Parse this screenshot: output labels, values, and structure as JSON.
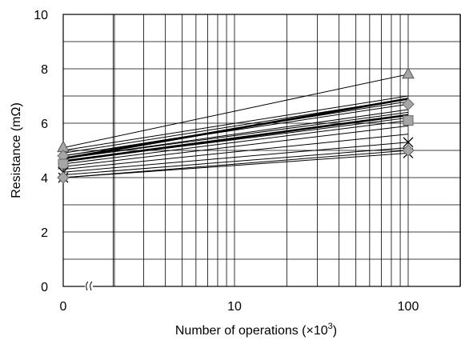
{
  "chart_data": {
    "type": "line",
    "xlabel": "Number of operations (×10",
    "xlabel_sup": "3",
    "xlabel_close": ")",
    "ylabel": "Resistance  (mΩ)",
    "x_scale": "log with axis break at 0",
    "x_ticks": [
      {
        "value": 0,
        "label": "0"
      },
      {
        "value": 10,
        "label": "10"
      },
      {
        "value": 100,
        "label": "100"
      }
    ],
    "x_minor": [
      2,
      3,
      4,
      5,
      6,
      7,
      8,
      9,
      20,
      30,
      40,
      50,
      60,
      70,
      80,
      90,
      200
    ],
    "ylim": [
      0,
      10
    ],
    "y_ticks": [
      0,
      2,
      4,
      6,
      8,
      10
    ],
    "y_grid": [
      1,
      2,
      3,
      4,
      5,
      6,
      7,
      8,
      9
    ],
    "grid": true,
    "series": [
      {
        "values": [
          5.1,
          7.8
        ],
        "marker": "triangle"
      },
      {
        "values": [
          5.0,
          7.0
        ],
        "marker": "none"
      },
      {
        "values": [
          4.9,
          6.9
        ],
        "marker": "none"
      },
      {
        "values": [
          4.8,
          6.8
        ],
        "marker": "none"
      },
      {
        "values": [
          4.8,
          6.7
        ],
        "marker": "diamond"
      },
      {
        "values": [
          4.7,
          6.5
        ],
        "marker": "none"
      },
      {
        "values": [
          4.7,
          6.4
        ],
        "marker": "none"
      },
      {
        "values": [
          4.6,
          6.3
        ],
        "marker": "none"
      },
      {
        "values": [
          4.6,
          6.2
        ],
        "marker": "none"
      },
      {
        "values": [
          4.5,
          6.1
        ],
        "marker": "square"
      },
      {
        "values": [
          4.4,
          5.9
        ],
        "marker": "none"
      },
      {
        "values": [
          4.3,
          5.6
        ],
        "marker": "none"
      },
      {
        "values": [
          4.2,
          5.3
        ],
        "marker": "cross"
      },
      {
        "values": [
          4.1,
          5.1
        ],
        "marker": "none"
      },
      {
        "values": [
          4.0,
          4.9
        ],
        "marker": "cross"
      },
      {
        "values": [
          4.0,
          5.0
        ],
        "marker": "diamond"
      }
    ],
    "bold_series": [
      {
        "values": [
          4.7,
          6.9
        ]
      },
      {
        "values": [
          4.6,
          6.3
        ]
      }
    ]
  }
}
